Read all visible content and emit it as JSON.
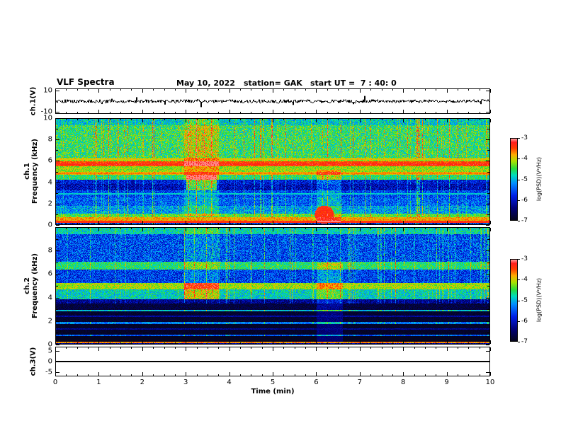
{
  "header": {
    "title": "VLF Spectra",
    "date": "May 10, 2022",
    "station": "station= GAK",
    "start_ut": "start UT =  7 : 40: 0"
  },
  "xaxis": {
    "label": "Time (min)",
    "ticks": [
      0,
      1,
      2,
      3,
      4,
      5,
      6,
      7,
      8,
      9,
      10
    ],
    "range": [
      0,
      10
    ]
  },
  "panels": [
    {
      "id": "ch1_voltage",
      "ylabel_lines": [
        "ch.1(V)"
      ],
      "yticks": [
        10,
        -10
      ],
      "range": [
        -12,
        12
      ],
      "minor_tick_every": 0
    },
    {
      "id": "ch1_spectrogram",
      "ylabel_lines": [
        "ch.1",
        "Frequency (kHz)"
      ],
      "yticks": [
        10,
        8,
        6,
        4,
        2,
        0
      ],
      "range": [
        0,
        10
      ],
      "minor_tick_every": 1
    },
    {
      "id": "ch2_spectrogram",
      "ylabel_lines": [
        "ch.2",
        "Frequency (kHz)"
      ],
      "yticks": [
        8,
        6,
        4,
        2,
        0
      ],
      "range": [
        0,
        10
      ],
      "minor_tick_every": 1
    },
    {
      "id": "ch3_voltage",
      "ylabel_lines": [
        "ch.3(V)"
      ],
      "yticks": [
        5,
        0,
        -5
      ],
      "range": [
        -7,
        7
      ],
      "minor_tick_every": 0
    }
  ],
  "colorbars": [
    {
      "label": "log(PSD)(V²/Hz)",
      "ticks": [
        -3,
        -4,
        -5,
        -6,
        -7
      ],
      "range": [
        -7,
        -3
      ]
    },
    {
      "label": "log(PSD)(V²/Hz)",
      "ticks": [
        -3,
        -4,
        -5,
        -6,
        -7
      ],
      "range": [
        -7,
        -3
      ]
    }
  ],
  "colormap_stops": [
    [
      0.0,
      [
        5,
        5,
        25
      ]
    ],
    [
      0.15,
      [
        0,
        0,
        120
      ]
    ],
    [
      0.3,
      [
        0,
        30,
        230
      ]
    ],
    [
      0.45,
      [
        0,
        140,
        255
      ]
    ],
    [
      0.55,
      [
        0,
        220,
        190
      ]
    ],
    [
      0.63,
      [
        40,
        220,
        60
      ]
    ],
    [
      0.72,
      [
        170,
        225,
        0
      ]
    ],
    [
      0.8,
      [
        255,
        170,
        0
      ]
    ],
    [
      0.88,
      [
        255,
        60,
        0
      ]
    ],
    [
      0.95,
      [
        255,
        30,
        30
      ]
    ],
    [
      1.0,
      [
        255,
        170,
        170
      ]
    ]
  ],
  "chart_data": [
    {
      "type": "line",
      "name": "ch1_waveform",
      "ylabel": "ch.1(V)",
      "ylim": [
        -12,
        12
      ],
      "xlim": [
        0,
        10
      ],
      "yticks": [
        10,
        -10
      ],
      "seed": 5,
      "noise_amplitude_v": 1.6,
      "spike_probability": 0.02,
      "spike_amplitude_v": 4.5,
      "description": "continuous broadband noise waveform, zero mean, ~plus/minus 2 V with occasional spikes to ~plus/minus 5 V over the full 10 minutes"
    },
    {
      "type": "heatmap",
      "name": "ch1_spectrogram",
      "xlabel": "Time (min)",
      "ylabel": "ch.1 Frequency (kHz)",
      "xlim": [
        0,
        10
      ],
      "ylim": [
        0,
        10
      ],
      "value_units": "log(PSD)(V²/Hz)",
      "value_range": [
        -7,
        -3
      ],
      "seed": 42,
      "bands": [
        {
          "f": [
            9.4,
            10.01
          ],
          "v": -4.9,
          "noise": 0.5
        },
        {
          "f": [
            6.3,
            9.4
          ],
          "v": -4.55,
          "noise": 0.55
        },
        {
          "f": [
            6.0,
            6.3
          ],
          "v": -4.1,
          "noise": 0.4
        },
        {
          "f": [
            5.5,
            6.0
          ],
          "v": -3.45,
          "noise": 0.25
        },
        {
          "f": [
            5.0,
            5.5
          ],
          "v": -4.2,
          "noise": 0.35
        },
        {
          "f": [
            4.75,
            5.0
          ],
          "v": -3.85,
          "noise": 0.3
        },
        {
          "f": [
            4.3,
            4.75
          ],
          "v": -4.6,
          "noise": 0.4
        },
        {
          "f": [
            3.9,
            4.3
          ],
          "v": -5.9,
          "noise": 0.45
        },
        {
          "f": [
            3.3,
            3.9
          ],
          "v": -6.1,
          "noise": 0.5
        },
        {
          "f": [
            2.6,
            3.3
          ],
          "v": -5.6,
          "noise": 0.5
        },
        {
          "f": [
            1.8,
            2.6
          ],
          "v": -5.45,
          "noise": 0.5
        },
        {
          "f": [
            1.1,
            1.8
          ],
          "v": -5.15,
          "noise": 0.5
        },
        {
          "f": [
            0.75,
            1.1
          ],
          "v": -4.4,
          "noise": 0.4
        },
        {
          "f": [
            0.45,
            0.75
          ],
          "v": -3.8,
          "noise": 0.3
        },
        {
          "f": [
            0.2,
            0.45
          ],
          "v": -3.35,
          "noise": 0.2
        },
        {
          "f": [
            0.0,
            0.2
          ],
          "v": -5.8,
          "noise": 0.8
        }
      ],
      "lines": [
        {
          "f": 5.72,
          "v": -3.3
        },
        {
          "f": 4.85,
          "v": -3.7
        },
        {
          "f": 6.18,
          "v": -4.0
        },
        {
          "f": 2.95,
          "v": -4.9
        }
      ],
      "events": [
        {
          "t": [
            2.95,
            3.75
          ],
          "f": [
            0.9,
            10
          ],
          "boost": 0.55
        },
        {
          "t": [
            3.0,
            3.7
          ],
          "f": [
            3.3,
            4.75
          ],
          "boost": 1.5
        },
        {
          "t": [
            6.0,
            6.55
          ],
          "f": [
            0.3,
            5.2
          ],
          "boost": 0.6
        }
      ],
      "blobs": [
        {
          "t": 6.18,
          "f": 1.0,
          "rt": 0.22,
          "rf": 0.85,
          "v": -3.35
        }
      ],
      "streaks": {
        "prob": 0.18,
        "max_boost": 1.1
      },
      "description": "strong red band 5.5-6 kHz, orange line near 4.85 kHz, green/cyan hiss 6.3-10 kHz, blue 1-4 kHz with dark band 3.3-3.9 kHz, bright yellow/red band below 0.8 kHz, bright column 3.0-3.7 min, red burst near 6.2 min below 2 kHz"
    },
    {
      "type": "heatmap",
      "name": "ch2_spectrogram",
      "xlabel": "Time (min)",
      "ylabel": "ch.2 Frequency (kHz)",
      "xlim": [
        0,
        10
      ],
      "ylim": [
        0,
        10
      ],
      "value_units": "log(PSD)(V²/Hz)",
      "value_range": [
        -7,
        -3
      ],
      "seed": 1337,
      "bands": [
        {
          "f": [
            9.4,
            10.01
          ],
          "v": -4.8,
          "noise": 0.4
        },
        {
          "f": [
            7.1,
            9.4
          ],
          "v": -5.55,
          "noise": 0.6
        },
        {
          "f": [
            6.4,
            7.1
          ],
          "v": -4.6,
          "noise": 0.4
        },
        {
          "f": [
            5.3,
            6.4
          ],
          "v": -5.65,
          "noise": 0.55
        },
        {
          "f": [
            4.7,
            5.3
          ],
          "v": -4.15,
          "noise": 0.35
        },
        {
          "f": [
            3.9,
            4.7
          ],
          "v": -4.85,
          "noise": 0.45
        },
        {
          "f": [
            3.55,
            3.9
          ],
          "v": -6.3,
          "noise": 0.4
        },
        {
          "f": [
            3.0,
            3.55
          ],
          "v": -6.75,
          "noise": 0.25
        },
        {
          "f": [
            2.85,
            3.0
          ],
          "v": -4.95,
          "noise": 0.3
        },
        {
          "f": [
            1.95,
            2.85
          ],
          "v": -6.85,
          "noise": 0.15
        },
        {
          "f": [
            1.8,
            1.95
          ],
          "v": -5.3,
          "noise": 0.4
        },
        {
          "f": [
            0.9,
            1.8
          ],
          "v": -6.9,
          "noise": 0.1
        },
        {
          "f": [
            0.75,
            0.9
          ],
          "v": -5.5,
          "noise": 0.4
        },
        {
          "f": [
            0.3,
            0.75
          ],
          "v": -6.95,
          "noise": 0.05
        },
        {
          "f": [
            0.18,
            0.3
          ],
          "v": -3.7,
          "noise": 0.3
        },
        {
          "f": [
            0.0,
            0.18
          ],
          "v": -6.4,
          "noise": 0.5
        }
      ],
      "lines": [
        {
          "f": 2.45,
          "v": -6.2
        },
        {
          "f": 1.35,
          "v": -6.3
        }
      ],
      "events": [
        {
          "t": [
            2.95,
            3.75
          ],
          "f": [
            3.9,
            5.3
          ],
          "boost": 1.0
        },
        {
          "t": [
            2.95,
            3.75
          ],
          "f": [
            5.3,
            10
          ],
          "boost": 0.4
        },
        {
          "t": [
            6.0,
            6.6
          ],
          "f": [
            0.3,
            7.0
          ],
          "boost": 0.6
        }
      ],
      "streaks": {
        "prob": 0.15,
        "max_boost": 1.0
      },
      "description": "blue speckled hiss 7-9.4 kHz, green bands near 6.7 and 4.7-5.3 kHz, mostly black below 3.5 kHz with thin horizontal lines, red line near 0.25 kHz, bright green column 3.0-3.7 min, faint blue streaks near 6.2 min"
    },
    {
      "type": "line",
      "name": "ch3_waveform",
      "ylabel": "ch.3(V)",
      "ylim": [
        -7,
        7
      ],
      "xlim": [
        0,
        10
      ],
      "yticks": [
        5,
        0,
        -5
      ],
      "constant_value": 0,
      "description": "flat thick black line at 0 V across the whole interval"
    }
  ]
}
